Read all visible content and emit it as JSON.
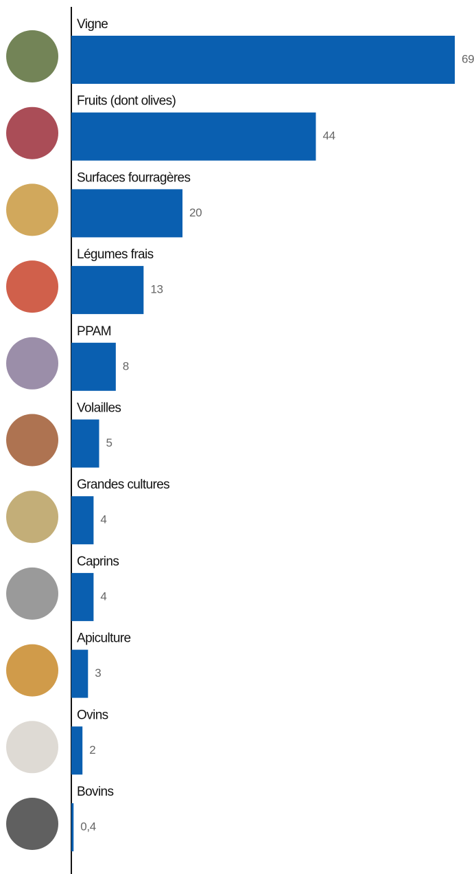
{
  "chart_data": {
    "type": "hbar",
    "categories": [
      "Vigne",
      "Fruits (dont olives)",
      "Surfaces fourragères",
      "Légumes frais",
      "PPAM",
      "Volailles",
      "Grandes cultures",
      "Caprins",
      "Apiculture",
      "Ovins",
      "Bovins"
    ],
    "values": [
      69,
      44,
      20,
      13,
      8,
      5,
      4,
      4,
      3,
      2,
      0.4
    ],
    "value_labels": [
      "69",
      "44",
      "20",
      "13",
      "8",
      "5",
      "4",
      "4",
      "3",
      "2",
      "0,4"
    ],
    "color": "#0a5fb0"
  }
}
